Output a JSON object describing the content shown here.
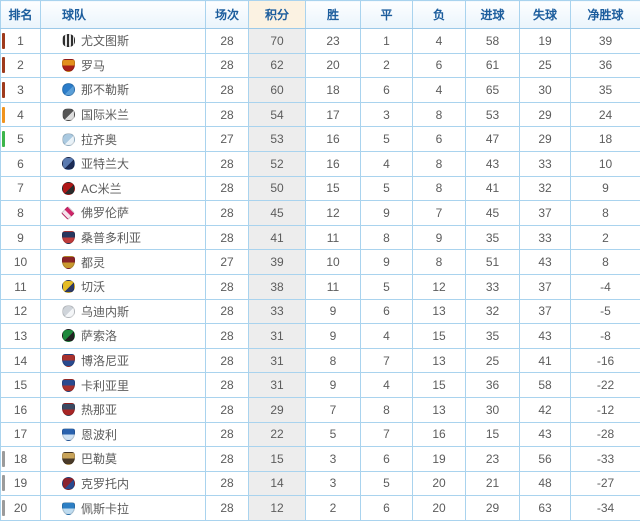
{
  "colors": {
    "border": "#a9d3ee",
    "outer_border": "#8fc1e3",
    "header_text": "#1c5d9d",
    "body_text": "#5c5c5c",
    "points_header_bg": "#fbf2e2",
    "points_body_bg": "#ededed",
    "marker_top3": "#9e3a1c",
    "marker_fourth": "#f0941f",
    "marker_fifth": "#3cb54b",
    "marker_relegation": "#9b9b9b"
  },
  "table": {
    "columns": [
      "排名",
      "球队",
      "场次",
      "积分",
      "胜",
      "平",
      "负",
      "进球",
      "失球",
      "净胜球"
    ],
    "rows": [
      {
        "rank": 1,
        "team": "尤文图斯",
        "marker": "#9e3a1c",
        "icon": {
          "name": "juventus-crest",
          "shape": "stripes",
          "colors": [
            "#2f2f2f",
            "#e9e9e9"
          ]
        },
        "played": 28,
        "points": 70,
        "won": 23,
        "drawn": 1,
        "lost": 4,
        "gf": 58,
        "ga": 19,
        "gd": 39
      },
      {
        "rank": 2,
        "team": "罗马",
        "marker": "#9e3a1c",
        "icon": {
          "name": "roma-crest",
          "shape": "shield",
          "colors": [
            "#e2901d",
            "#a82019"
          ]
        },
        "played": 28,
        "points": 62,
        "won": 20,
        "drawn": 2,
        "lost": 6,
        "gf": 61,
        "ga": 25,
        "gd": 36
      },
      {
        "rank": 3,
        "team": "那不勒斯",
        "marker": "#9e3a1c",
        "icon": {
          "name": "napoli-crest",
          "shape": "circle",
          "colors": [
            "#2b7cc9",
            "#5a9fd8"
          ]
        },
        "played": 28,
        "points": 60,
        "won": 18,
        "drawn": 6,
        "lost": 4,
        "gf": 65,
        "ga": 30,
        "gd": 35
      },
      {
        "rank": 4,
        "team": "国际米兰",
        "marker": "#f0941f",
        "icon": {
          "name": "inter-crest",
          "shape": "circle",
          "colors": [
            "#555555",
            "#dddddd"
          ]
        },
        "played": 28,
        "points": 54,
        "won": 17,
        "drawn": 3,
        "lost": 8,
        "gf": 53,
        "ga": 29,
        "gd": 24
      },
      {
        "rank": 5,
        "team": "拉齐奥",
        "marker": "#3cb54b",
        "icon": {
          "name": "lazio-crest",
          "shape": "circle",
          "colors": [
            "#aac9e0",
            "#e9f2f8"
          ]
        },
        "played": 27,
        "points": 53,
        "won": 16,
        "drawn": 5,
        "lost": 6,
        "gf": 47,
        "ga": 29,
        "gd": 18
      },
      {
        "rank": 6,
        "team": "亚特兰大",
        "marker": "",
        "icon": {
          "name": "atalanta-crest",
          "shape": "circle",
          "colors": [
            "#5a7ab0",
            "#1b2b55"
          ]
        },
        "played": 28,
        "points": 52,
        "won": 16,
        "drawn": 4,
        "lost": 8,
        "gf": 43,
        "ga": 33,
        "gd": 10
      },
      {
        "rank": 7,
        "team": "AC米兰",
        "marker": "",
        "icon": {
          "name": "ac-milan-crest",
          "shape": "circle",
          "colors": [
            "#b01818",
            "#2b2b2b"
          ]
        },
        "played": 28,
        "points": 50,
        "won": 15,
        "drawn": 5,
        "lost": 8,
        "gf": 41,
        "ga": 32,
        "gd": 9
      },
      {
        "rank": 8,
        "team": "佛罗伦萨",
        "marker": "",
        "icon": {
          "name": "fiorentina-crest",
          "shape": "diamond",
          "colors": [
            "#cf2468",
            "#f6e3ec"
          ]
        },
        "played": 28,
        "points": 45,
        "won": 12,
        "drawn": 9,
        "lost": 7,
        "gf": 45,
        "ga": 37,
        "gd": 8
      },
      {
        "rank": 9,
        "team": "桑普多利亚",
        "marker": "",
        "icon": {
          "name": "sampdoria-crest",
          "shape": "shield",
          "colors": [
            "#27375f",
            "#c03c3c"
          ]
        },
        "played": 28,
        "points": 41,
        "won": 11,
        "drawn": 8,
        "lost": 9,
        "gf": 35,
        "ga": 33,
        "gd": 2
      },
      {
        "rank": 10,
        "team": "都灵",
        "marker": "",
        "icon": {
          "name": "torino-crest",
          "shape": "shield",
          "colors": [
            "#8a2328",
            "#c9992e"
          ]
        },
        "played": 27,
        "points": 39,
        "won": 10,
        "drawn": 9,
        "lost": 8,
        "gf": 51,
        "ga": 43,
        "gd": 8
      },
      {
        "rank": 11,
        "team": "切沃",
        "marker": "",
        "icon": {
          "name": "chievo-crest",
          "shape": "circle",
          "colors": [
            "#e5bd28",
            "#2e3a66"
          ]
        },
        "played": 28,
        "points": 38,
        "won": 11,
        "drawn": 5,
        "lost": 12,
        "gf": 33,
        "ga": 37,
        "gd": -4
      },
      {
        "rank": 12,
        "team": "乌迪内斯",
        "marker": "",
        "icon": {
          "name": "udinese-crest",
          "shape": "circle",
          "colors": [
            "#cfd4da",
            "#f4f6f8"
          ]
        },
        "played": 28,
        "points": 33,
        "won": 9,
        "drawn": 6,
        "lost": 13,
        "gf": 32,
        "ga": 37,
        "gd": -5
      },
      {
        "rank": 13,
        "team": "萨索洛",
        "marker": "",
        "icon": {
          "name": "sassuolo-crest",
          "shape": "circle",
          "colors": [
            "#1f8a3d",
            "#222222"
          ]
        },
        "played": 28,
        "points": 31,
        "won": 9,
        "drawn": 4,
        "lost": 15,
        "gf": 35,
        "ga": 43,
        "gd": -8
      },
      {
        "rank": 14,
        "team": "博洛尼亚",
        "marker": "",
        "icon": {
          "name": "bologna-crest",
          "shape": "shield",
          "colors": [
            "#a8312e",
            "#2a4a8f"
          ]
        },
        "played": 28,
        "points": 31,
        "won": 8,
        "drawn": 7,
        "lost": 13,
        "gf": 25,
        "ga": 41,
        "gd": -16
      },
      {
        "rank": 15,
        "team": "卡利亚里",
        "marker": "",
        "icon": {
          "name": "cagliari-crest",
          "shape": "shield",
          "colors": [
            "#2a4a8f",
            "#a8312e"
          ]
        },
        "played": 28,
        "points": 31,
        "won": 9,
        "drawn": 4,
        "lost": 15,
        "gf": 36,
        "ga": 58,
        "gd": -22
      },
      {
        "rank": 16,
        "team": "热那亚",
        "marker": "",
        "icon": {
          "name": "genoa-crest",
          "shape": "shield",
          "colors": [
            "#3c4a63",
            "#a82626"
          ]
        },
        "played": 28,
        "points": 29,
        "won": 7,
        "drawn": 8,
        "lost": 13,
        "gf": 30,
        "ga": 42,
        "gd": -12
      },
      {
        "rank": 17,
        "team": "恩波利",
        "marker": "",
        "icon": {
          "name": "empoli-crest",
          "shape": "shield",
          "colors": [
            "#2a62ae",
            "#cfe2f4"
          ]
        },
        "played": 28,
        "points": 22,
        "won": 5,
        "drawn": 7,
        "lost": 16,
        "gf": 15,
        "ga": 43,
        "gd": -28
      },
      {
        "rank": 18,
        "team": "巴勒莫",
        "marker": "#9b9b9b",
        "icon": {
          "name": "palermo-crest",
          "shape": "shield",
          "colors": [
            "#c9a45a",
            "#4a3a28"
          ]
        },
        "played": 28,
        "points": 15,
        "won": 3,
        "drawn": 6,
        "lost": 19,
        "gf": 23,
        "ga": 56,
        "gd": -33
      },
      {
        "rank": 19,
        "team": "克罗托内",
        "marker": "#9b9b9b",
        "icon": {
          "name": "crotone-crest",
          "shape": "circle",
          "colors": [
            "#8a2330",
            "#2a4a8f"
          ]
        },
        "played": 28,
        "points": 14,
        "won": 3,
        "drawn": 5,
        "lost": 20,
        "gf": 21,
        "ga": 48,
        "gd": -27
      },
      {
        "rank": 20,
        "team": "佩斯卡拉",
        "marker": "#9b9b9b",
        "icon": {
          "name": "pescara-crest",
          "shape": "shield",
          "colors": [
            "#2d7fc4",
            "#bfdcf0"
          ]
        },
        "played": 28,
        "points": 12,
        "won": 2,
        "drawn": 6,
        "lost": 20,
        "gf": 29,
        "ga": 63,
        "gd": -34
      }
    ]
  }
}
